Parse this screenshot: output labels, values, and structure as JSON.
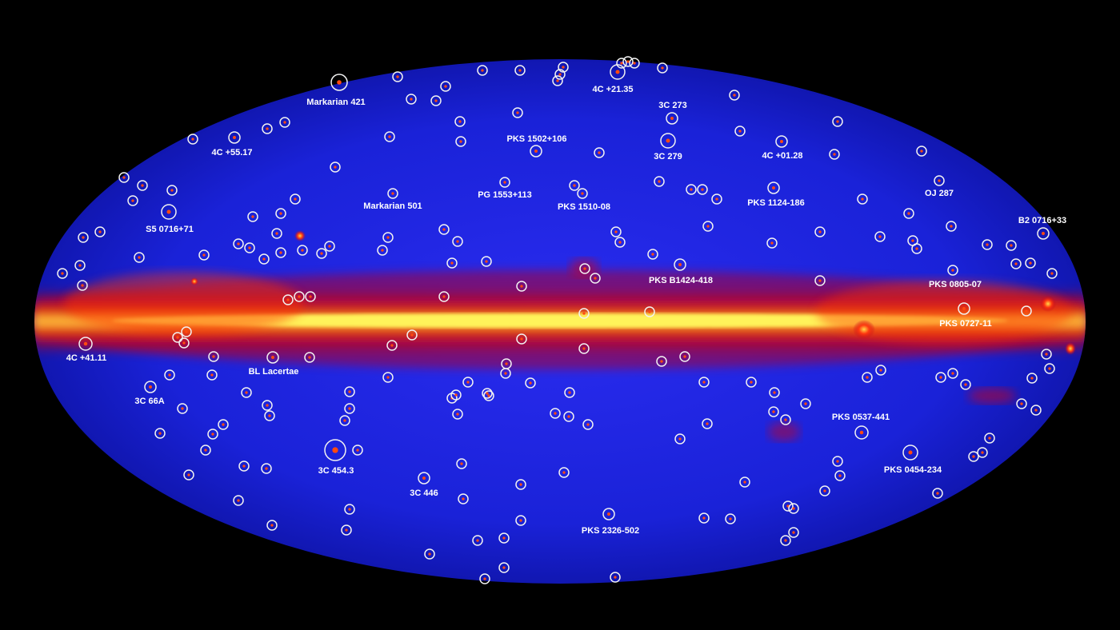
{
  "colors": {
    "background": "#000000",
    "sky_base": "#1a22d8",
    "sky_edge": "#0d12a0",
    "plane_core": "#fff35a",
    "plane_mid": "#ff6a00",
    "plane_outer": "#d4000e",
    "marker": "#f2f2f2"
  },
  "sources": [
    {
      "id": "markarian-421",
      "label": "Markarian 421"
    },
    {
      "id": "4c-21-35",
      "label": "4C +21.35"
    },
    {
      "id": "3c-273",
      "label": "3C 273"
    },
    {
      "id": "pks-1502-106",
      "label": "PKS 1502+106"
    },
    {
      "id": "3c-279",
      "label": "3C 279"
    },
    {
      "id": "4c-01-28",
      "label": "4C +01.28"
    },
    {
      "id": "4c-55-17",
      "label": "4C +55.17"
    },
    {
      "id": "markarian-501",
      "label": "Markarian 501"
    },
    {
      "id": "pg-1553-113",
      "label": "PG 1553+113"
    },
    {
      "id": "pks-1510-08",
      "label": "PKS 1510-08"
    },
    {
      "id": "pks-1124-186",
      "label": "PKS 1124-186"
    },
    {
      "id": "oj-287",
      "label": "OJ 287"
    },
    {
      "id": "s5-0716-71",
      "label": "S5 0716+71"
    },
    {
      "id": "b2-0716-33",
      "label": "B2 0716+33"
    },
    {
      "id": "pks-b1424-418",
      "label": "PKS B1424-418"
    },
    {
      "id": "pks-0805-07",
      "label": "PKS 0805-07"
    },
    {
      "id": "pks-0727-11",
      "label": "PKS 0727-11"
    },
    {
      "id": "4c-41-11",
      "label": "4C +41.11"
    },
    {
      "id": "bl-lacertae",
      "label": "BL Lacertae"
    },
    {
      "id": "3c-66a",
      "label": "3C 66A"
    },
    {
      "id": "pks-0537-441",
      "label": "PKS 0537-441"
    },
    {
      "id": "3c-454-3",
      "label": "3C 454.3"
    },
    {
      "id": "pks-0454-234",
      "label": "PKS 0454-234"
    },
    {
      "id": "3c-446",
      "label": "3C 446"
    },
    {
      "id": "pks-2326-502",
      "label": "PKS 2326-502"
    }
  ]
}
